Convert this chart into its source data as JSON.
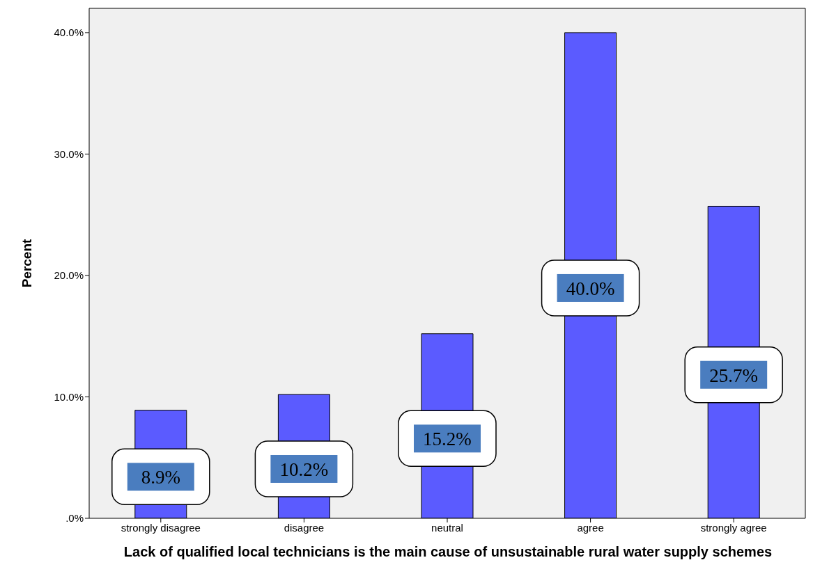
{
  "chart_data": {
    "type": "bar",
    "xlabel": "Lack of qualified local technicians is the main cause of unsustainable rural water supply schemes",
    "ylabel": "Percent",
    "categories": [
      "strongly disagree",
      "disagree",
      "neutral",
      "agree",
      "strongly agree"
    ],
    "values": [
      8.9,
      10.2,
      15.2,
      40.0,
      25.7
    ],
    "value_labels": [
      "8.9%",
      "10.2%",
      "15.2%",
      "40.0%",
      "25.7%"
    ],
    "color": "#5b5bff",
    "ylim": [
      0,
      42
    ],
    "yticks": [
      {
        "value": 0,
        "label": ".0%"
      },
      {
        "value": 10,
        "label": "10.0%"
      },
      {
        "value": 20,
        "label": "20.0%"
      },
      {
        "value": 30,
        "label": "30.0%"
      },
      {
        "value": 40,
        "label": "40.0%"
      }
    ],
    "grid": false,
    "legend": false
  }
}
